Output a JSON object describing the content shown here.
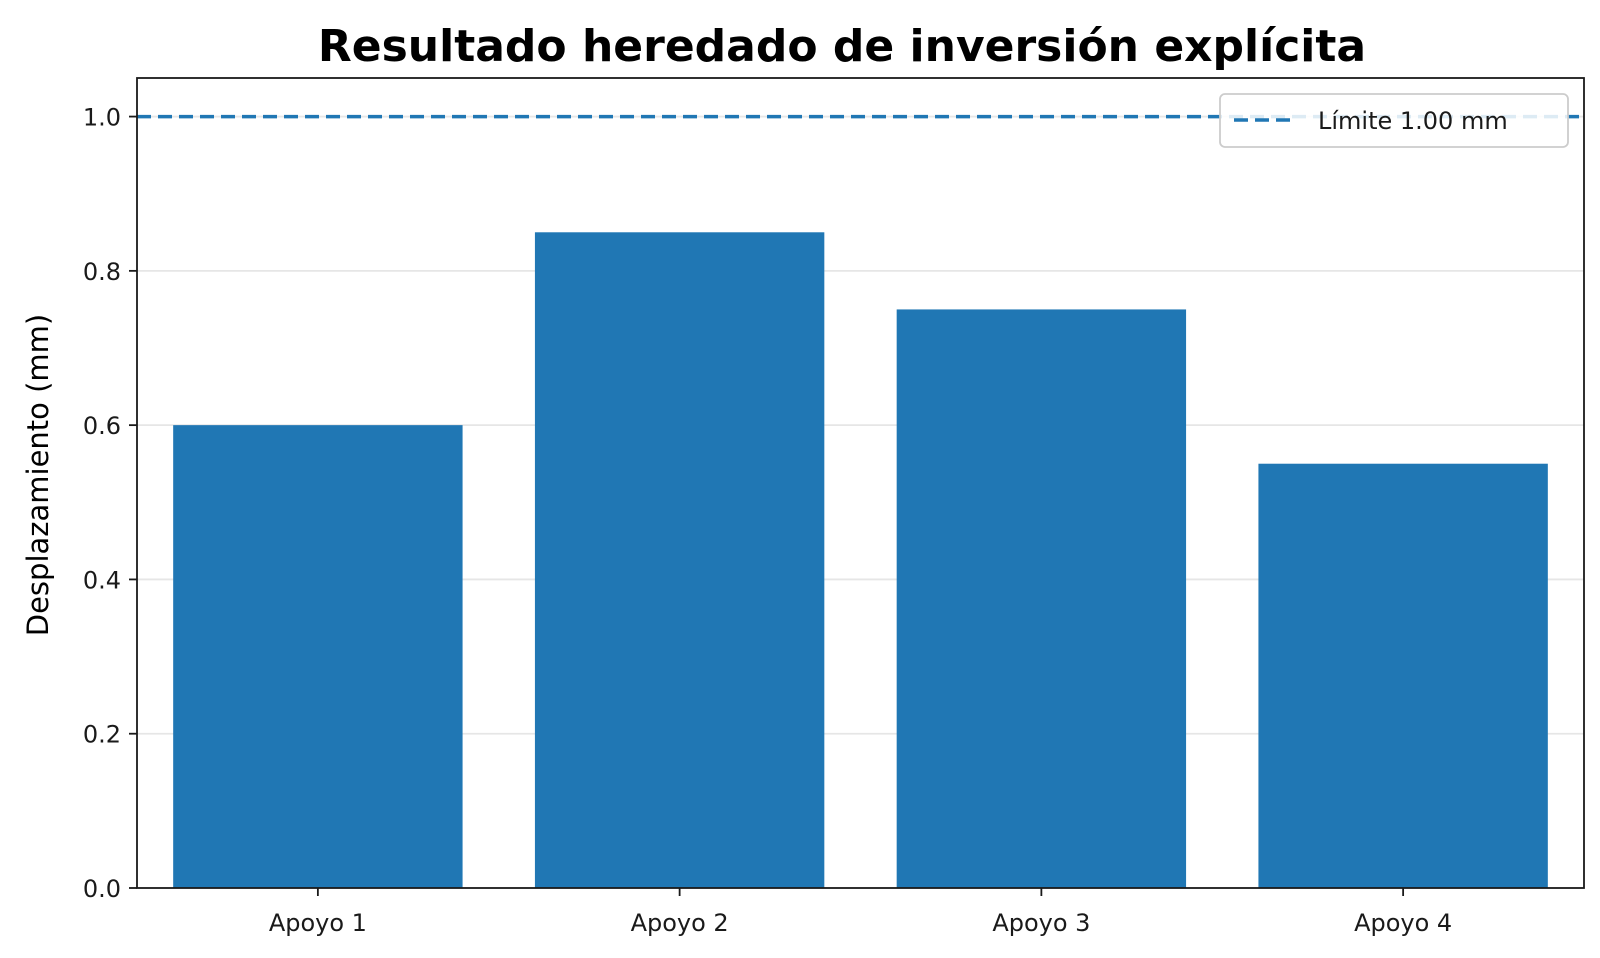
{
  "chart_data": {
    "type": "bar",
    "title": "Resultado heredado de inversión explícita",
    "xlabel": "",
    "ylabel": "Desplazamiento (mm)",
    "categories": [
      "Apoyo 1",
      "Apoyo 2",
      "Apoyo 3",
      "Apoyo 4"
    ],
    "values": [
      0.6,
      0.85,
      0.75,
      0.55
    ],
    "ylim": [
      0.0,
      1.05
    ],
    "yticks": [
      0.0,
      0.2,
      0.4,
      0.6,
      0.8,
      1.0
    ],
    "ytick_labels": [
      "0.0",
      "0.2",
      "0.4",
      "0.6",
      "0.8",
      "1.0"
    ],
    "grid": "horizontal",
    "bar_color": "#2077b4",
    "reference_line": {
      "value": 1.0,
      "style": "dashed",
      "color": "#2077b4",
      "label": "Límite 1.00 mm"
    },
    "legend": {
      "position": "top-right",
      "entries": [
        "Límite 1.00 mm"
      ]
    }
  }
}
